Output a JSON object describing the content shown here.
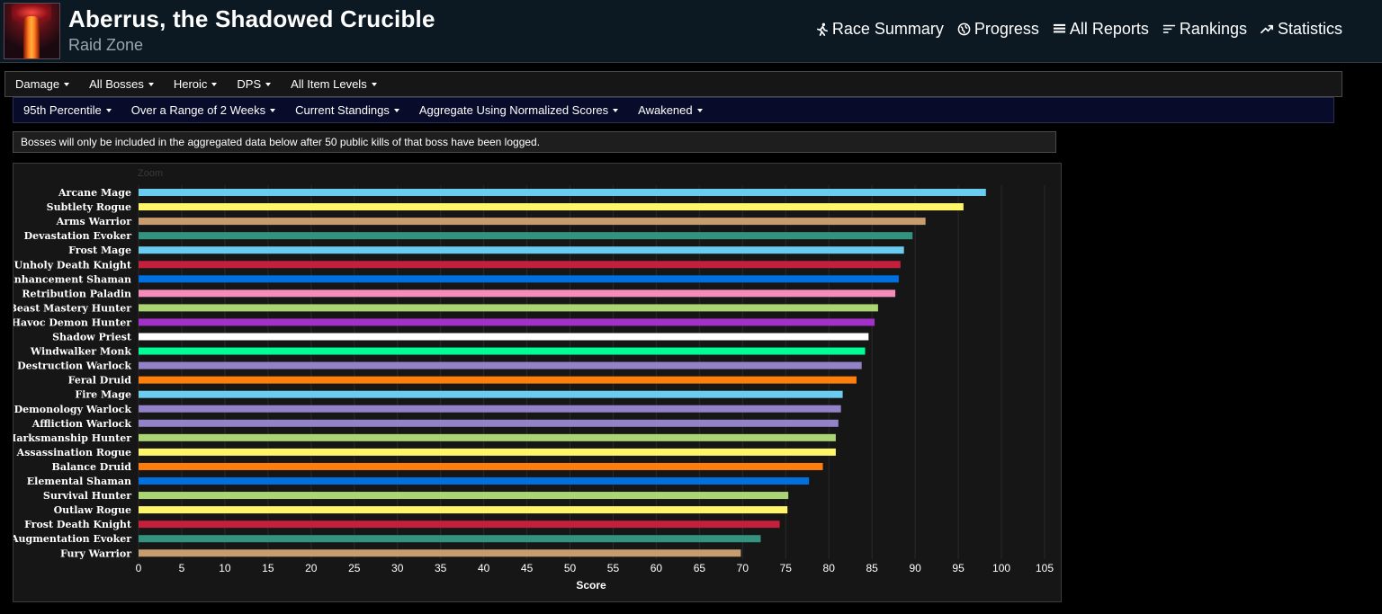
{
  "header": {
    "title": "Aberrus, the Shadowed Crucible",
    "subtitle": "Raid Zone",
    "nav": [
      {
        "label": "Race Summary",
        "icon": "runner-icon"
      },
      {
        "label": "Progress",
        "icon": "globe-icon"
      },
      {
        "label": "All Reports",
        "icon": "list-icon"
      },
      {
        "label": "Rankings",
        "icon": "rankings-icon"
      },
      {
        "label": "Statistics",
        "icon": "trend-icon"
      }
    ]
  },
  "filters_row1": [
    "Damage",
    "All Bosses",
    "Heroic",
    "DPS",
    "All Item Levels"
  ],
  "filters_row2": [
    "95th Percentile",
    "Over a Range of 2 Weeks",
    "Current Standings",
    "Aggregate Using Normalized Scores",
    "Awakened"
  ],
  "notice": "Bosses will only be included in the aggregated data below after 50 public kills of that boss have been logged.",
  "chart_data": {
    "type": "bar",
    "orientation": "horizontal",
    "zoom_label": "Zoom",
    "xlabel": "Score",
    "xlim": [
      0,
      105
    ],
    "xticks": [
      0,
      5,
      10,
      15,
      20,
      25,
      30,
      35,
      40,
      45,
      50,
      55,
      60,
      65,
      70,
      75,
      80,
      85,
      90,
      95,
      100,
      105
    ],
    "grid": true,
    "categories": [
      "Arcane Mage",
      "Subtlety Rogue",
      "Arms Warrior",
      "Devastation Evoker",
      "Frost Mage",
      "Unholy Death Knight",
      "Enhancement Shaman",
      "Retribution Paladin",
      "Beast Mastery Hunter",
      "Havoc Demon Hunter",
      "Shadow Priest",
      "Windwalker Monk",
      "Destruction Warlock",
      "Feral Druid",
      "Fire Mage",
      "Demonology Warlock",
      "Affliction Warlock",
      "Marksmanship Hunter",
      "Assassination Rogue",
      "Balance Druid",
      "Elemental Shaman",
      "Survival Hunter",
      "Outlaw Rogue",
      "Frost Death Knight",
      "Augmentation Evoker",
      "Fury Warrior"
    ],
    "values": [
      98.2,
      95.6,
      91.2,
      89.7,
      88.7,
      88.3,
      88.1,
      87.7,
      85.7,
      85.3,
      84.6,
      84.2,
      83.8,
      83.2,
      81.6,
      81.4,
      81.1,
      80.8,
      80.8,
      79.3,
      77.7,
      75.3,
      75.2,
      74.3,
      72.1,
      69.8
    ],
    "colors": [
      "#69ccf0",
      "#fff569",
      "#c79c6e",
      "#33937f",
      "#69ccf0",
      "#c41f3b",
      "#0070de",
      "#f58cba",
      "#abd473",
      "#a330c9",
      "#ffffff",
      "#00ff96",
      "#9482c9",
      "#ff7d0a",
      "#69ccf0",
      "#9482c9",
      "#9482c9",
      "#abd473",
      "#fff569",
      "#ff7d0a",
      "#0070de",
      "#abd473",
      "#fff569",
      "#c41f3b",
      "#33937f",
      "#c79c6e"
    ]
  }
}
